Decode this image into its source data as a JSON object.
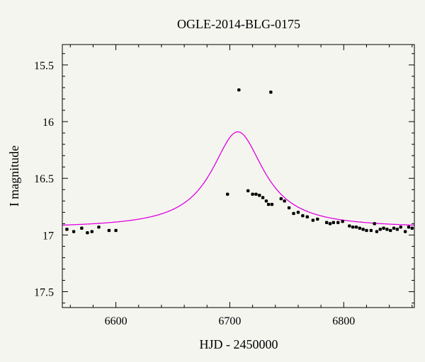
{
  "chart_data": {
    "type": "scatter",
    "title": "OGLE-2014-BLG-0175",
    "xlabel": "HJD - 2450000",
    "ylabel": "I magnitude",
    "xlim": [
      6553,
      6862
    ],
    "ylim": [
      17.64,
      15.32
    ],
    "y_inverted": true,
    "grid": false,
    "x_ticks": [
      6600,
      6700,
      6800
    ],
    "x_tick_labels": [
      "6600",
      "6700",
      "6800"
    ],
    "y_ticks": [
      15.5,
      16,
      16.5,
      17,
      17.5
    ],
    "y_tick_labels": [
      "15.5",
      "16",
      "16.5",
      "17",
      "17.5"
    ],
    "colors": {
      "points": "#000000",
      "model": "#e000e0",
      "background": "#f5f5f0"
    },
    "series": [
      {
        "kind": "points",
        "x": [
          6557,
          6563,
          6570,
          6575,
          6579,
          6585,
          6594,
          6600,
          6698,
          6708,
          6716,
          6720,
          6723,
          6726,
          6729,
          6732,
          6734,
          6736,
          6737,
          6745,
          6748,
          6752,
          6756,
          6760,
          6764,
          6768,
          6773,
          6777,
          6785,
          6788,
          6791,
          6795,
          6799,
          6805,
          6808,
          6811,
          6814,
          6817,
          6820,
          6824,
          6827,
          6829,
          6832,
          6835,
          6838,
          6841,
          6844,
          6847,
          6850,
          6854,
          6857,
          6860
        ],
        "y": [
          16.95,
          16.97,
          16.94,
          16.98,
          16.97,
          16.93,
          16.96,
          16.96,
          16.64,
          15.72,
          16.61,
          16.64,
          16.64,
          16.65,
          16.67,
          16.7,
          16.73,
          15.74,
          16.73,
          16.68,
          16.7,
          16.76,
          16.81,
          16.8,
          16.83,
          16.84,
          16.87,
          16.86,
          16.89,
          16.9,
          16.89,
          16.89,
          16.88,
          16.92,
          16.93,
          16.93,
          16.94,
          16.95,
          16.96,
          16.96,
          16.9,
          16.97,
          16.95,
          16.94,
          16.95,
          16.96,
          16.94,
          16.95,
          16.93,
          16.97,
          16.93,
          16.94
        ]
      },
      {
        "kind": "model-curve",
        "baseline": 16.94,
        "peak_x": 6707,
        "peak_y": 16.09,
        "halfwidth": 28,
        "x_range": [
          6553,
          6862
        ]
      }
    ]
  }
}
